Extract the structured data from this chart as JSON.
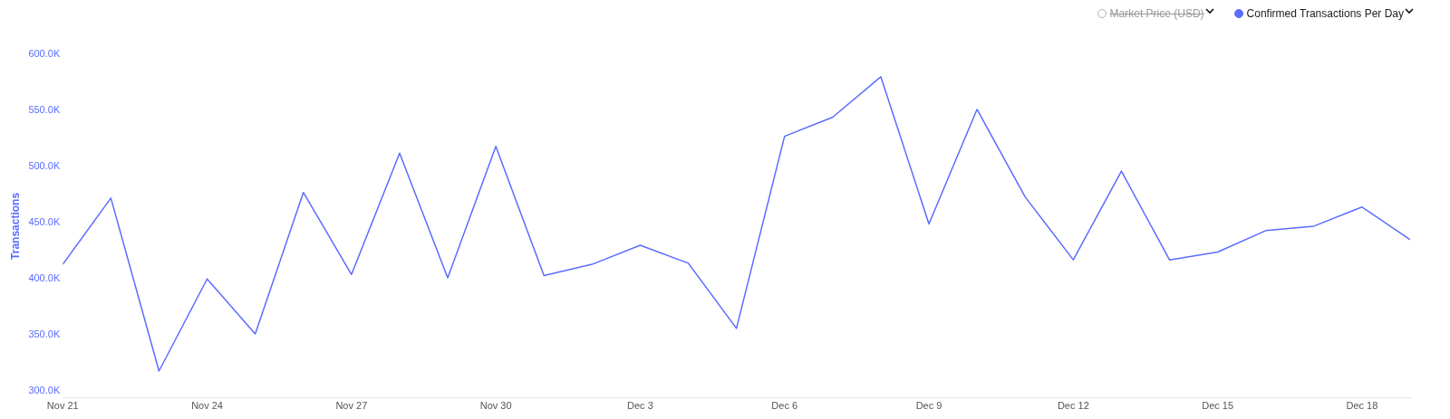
{
  "chart_data": {
    "type": "line",
    "ylabel": "Transactions",
    "legend": "top right",
    "grid": false,
    "marker": "none",
    "line_style": "solid",
    "x": [
      "--11-21",
      "--11-22",
      "--11-23",
      "--11-24",
      "--11-25",
      "--11-26",
      "--11-27",
      "--11-28",
      "--11-29",
      "--11-30",
      "--12-01",
      "--12-02",
      "--12-03",
      "--12-04",
      "--12-05",
      "--12-06",
      "--12-07",
      "--12-08",
      "--12-09",
      "--12-10",
      "--12-11",
      "--12-12",
      "--12-13",
      "--12-14",
      "--12-15",
      "--12-16",
      "--12-17",
      "--12-18",
      "--12-19"
    ],
    "series": [
      {
        "name": "Market Price (USD)",
        "color": "#b0b0b0",
        "values": [
          null,
          null,
          null,
          null,
          null,
          null,
          null,
          null,
          null,
          null,
          null,
          null,
          null,
          null,
          null,
          null,
          null,
          null,
          null,
          null,
          null,
          null,
          null,
          null,
          null,
          null,
          null,
          null,
          null
        ]
      },
      {
        "name": "Confirmed Transactions Per Day",
        "color": "#5b6cff",
        "values": [
          413000,
          472000,
          318000,
          400000,
          351000,
          477000,
          404000,
          512000,
          401000,
          518000,
          403000,
          413000,
          430000,
          414000,
          356000,
          527000,
          544000,
          580000,
          449000,
          551000,
          473000,
          417000,
          496000,
          417000,
          424000,
          443000,
          447000,
          464000,
          435000
        ]
      }
    ],
    "xlim": [
      "--11-21",
      "--12-19"
    ],
    "xticks": [
      {
        "value": "--11-21",
        "label": "Nov 21"
      },
      {
        "value": "--11-24",
        "label": "Nov 24"
      },
      {
        "value": "--11-27",
        "label": "Nov 27"
      },
      {
        "value": "--11-30",
        "label": "Nov 30"
      },
      {
        "value": "--12-03",
        "label": "Dec 3"
      },
      {
        "value": "--12-06",
        "label": "Dec 6"
      },
      {
        "value": "--12-09",
        "label": "Dec 9"
      },
      {
        "value": "--12-12",
        "label": "Dec 12"
      },
      {
        "value": "--12-15",
        "label": "Dec 15"
      },
      {
        "value": "--12-18",
        "label": "Dec 18"
      }
    ],
    "ylim": [
      294000,
      600000
    ],
    "yticks": [
      {
        "value": 300000,
        "label": "300.0K"
      },
      {
        "value": 350000,
        "label": "350.0K"
      },
      {
        "value": 400000,
        "label": "400.0K"
      },
      {
        "value": 450000,
        "label": "450.0K"
      },
      {
        "value": 500000,
        "label": "500.0K"
      },
      {
        "value": 550000,
        "label": "550.0K"
      },
      {
        "value": 600000,
        "label": "600.0K"
      }
    ]
  }
}
